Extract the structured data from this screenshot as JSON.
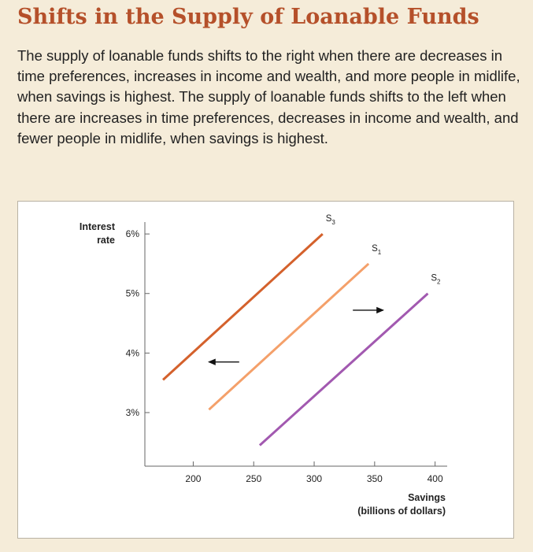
{
  "header": {
    "title": "Shifts in the Supply of Loanable Funds",
    "description": "The supply of loanable funds shifts to the right when there are decreases in time preferences, increases in income and wealth, and more people in midlife, when savings is highest. The supply of loanable funds shifts to the left when there are increases in time preferences, decreases in income and wealth, and fewer people in midlife, when savings is highest."
  },
  "chart_data": {
    "type": "line",
    "ylabel_line1": "Interest",
    "ylabel_line2": "rate",
    "xlabel_line1": "Savings",
    "xlabel_line2": "(billions of dollars)",
    "x_ticks": [
      "200",
      "250",
      "300",
      "350",
      "400"
    ],
    "y_ticks": [
      "3%",
      "4%",
      "5%",
      "6%"
    ],
    "x_tick_values": [
      200,
      250,
      300,
      350,
      400
    ],
    "y_tick_values": [
      3,
      4,
      5,
      6
    ],
    "xlim": [
      160,
      410
    ],
    "ylim": [
      2.1,
      6.2
    ],
    "series": [
      {
        "name": "S3",
        "name_base": "S",
        "name_sub": "3",
        "color": "#d4612c",
        "x": [
          175,
          307
        ],
        "y": [
          3.55,
          6.0
        ]
      },
      {
        "name": "S1",
        "name_base": "S",
        "name_sub": "1",
        "color": "#f4a06a",
        "x": [
          213,
          345
        ],
        "y": [
          3.05,
          5.5
        ]
      },
      {
        "name": "S2",
        "name_base": "S",
        "name_sub": "2",
        "color": "#a259b0",
        "x": [
          255,
          394
        ],
        "y": [
          2.45,
          5.0
        ]
      }
    ],
    "arrows": [
      {
        "direction": "left",
        "x_from": 238,
        "x_to": 213,
        "y": 3.85
      },
      {
        "direction": "right",
        "x_from": 332,
        "x_to": 357,
        "y": 4.72
      }
    ]
  }
}
